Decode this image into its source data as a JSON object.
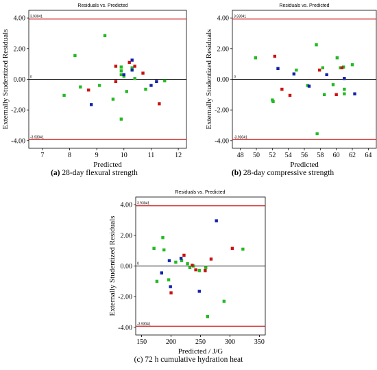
{
  "captions": [
    {
      "letter": "(a)",
      "text": " 28-day flexural strength"
    },
    {
      "letter": "(b)",
      "text": " 28-day compressive strength"
    },
    {
      "letter": "(c)",
      "text": " 72 h cumulative hydration heat"
    }
  ],
  "colors": {
    "green": "#22bb22",
    "red": "#cc1111",
    "blue": "#1122aa",
    "limit": "#cc2222",
    "zero": "#000000"
  },
  "chart_data": [
    {
      "type": "scatter",
      "title": "Residuals vs. Predicted",
      "xlabel": "Predicted",
      "ylabel": "Externally Studentized Residuals",
      "xlim": [
        6.5,
        12.3
      ],
      "ylim": [
        -4.5,
        4.5
      ],
      "xticks": [
        7,
        8,
        9,
        10,
        11,
        12
      ],
      "xtick_labels": [
        "7",
        "8",
        "9",
        "10",
        "11",
        "12"
      ],
      "yticks": [
        -4,
        -2,
        0,
        2,
        4
      ],
      "ytick_labels": [
        "-4.00",
        "-2.00",
        "0.00",
        "2.00",
        "4.00"
      ],
      "reference_lines": [
        {
          "y": 3.93041,
          "label": "3.93041",
          "color": "red"
        },
        {
          "y": 0,
          "label": "0",
          "color": "black"
        },
        {
          "y": -3.93041,
          "label": "-3.93041",
          "color": "red"
        }
      ],
      "series": [
        {
          "color": "green",
          "points": [
            [
              7.8,
              -1.05
            ],
            [
              8.2,
              1.55
            ],
            [
              8.4,
              -0.5
            ],
            [
              9.1,
              -0.4
            ],
            [
              9.3,
              2.85
            ],
            [
              9.6,
              -1.3
            ],
            [
              9.9,
              0.8
            ],
            [
              9.9,
              0.55
            ],
            [
              9.9,
              0.3
            ],
            [
              9.9,
              -2.6
            ],
            [
              10.0,
              0.2
            ],
            [
              10.1,
              -0.8
            ],
            [
              10.3,
              0.75
            ],
            [
              10.4,
              0.05
            ],
            [
              10.8,
              -0.65
            ],
            [
              11.5,
              -0.1
            ]
          ]
        },
        {
          "color": "red",
          "points": [
            [
              8.7,
              -0.7
            ],
            [
              9.7,
              0.85
            ],
            [
              9.7,
              -0.15
            ],
            [
              10.2,
              1.1
            ],
            [
              10.4,
              0.85
            ],
            [
              10.7,
              0.4
            ],
            [
              11.3,
              -1.6
            ]
          ]
        },
        {
          "color": "blue",
          "points": [
            [
              8.8,
              -1.65
            ],
            [
              10.0,
              0.3
            ],
            [
              10.3,
              1.25
            ],
            [
              10.3,
              0.6
            ],
            [
              11.0,
              -0.4
            ],
            [
              11.2,
              -0.15
            ]
          ]
        }
      ]
    },
    {
      "type": "scatter",
      "title": "Residuals vs. Predicted",
      "xlabel": "Predicted",
      "ylabel": "Externally Studentized Residuals",
      "xlim": [
        47,
        65
      ],
      "ylim": [
        -4.5,
        4.5
      ],
      "xticks": [
        48,
        50,
        52,
        54,
        56,
        58,
        60,
        62,
        64
      ],
      "xtick_labels": [
        "48",
        "50",
        "52",
        "54",
        "56",
        "58",
        "60",
        "62",
        "64"
      ],
      "yticks": [
        -4,
        -2,
        0,
        2,
        4
      ],
      "ytick_labels": [
        "-4.00",
        "-2.00",
        "0.00",
        "2.00",
        "4.00"
      ],
      "reference_lines": [
        {
          "y": 3.93041,
          "label": "3.93041",
          "color": "red"
        },
        {
          "y": 0,
          "label": "0",
          "color": "black"
        },
        {
          "y": -3.93041,
          "label": "-3.93041",
          "color": "red"
        }
      ],
      "series": [
        {
          "color": "green",
          "points": [
            [
              49.9,
              1.4
            ],
            [
              52.0,
              -1.35
            ],
            [
              52.1,
              -1.45
            ],
            [
              55.0,
              0.6
            ],
            [
              56.4,
              -0.4
            ],
            [
              57.5,
              2.25
            ],
            [
              57.6,
              -3.55
            ],
            [
              58.3,
              0.75
            ],
            [
              58.5,
              -1.0
            ],
            [
              59.6,
              -0.35
            ],
            [
              60.1,
              1.4
            ],
            [
              60.9,
              0.8
            ],
            [
              61.0,
              -0.65
            ],
            [
              61.0,
              -0.95
            ],
            [
              62.0,
              0.95
            ],
            [
              60.5,
              0.75
            ]
          ]
        },
        {
          "color": "red",
          "points": [
            [
              52.3,
              1.5
            ],
            [
              53.2,
              -0.65
            ],
            [
              54.2,
              -1.05
            ],
            [
              57.9,
              0.6
            ],
            [
              60.0,
              -1.0
            ],
            [
              60.7,
              0.75
            ],
            [
              61.0,
              0.05
            ]
          ]
        },
        {
          "color": "blue",
          "points": [
            [
              52.7,
              0.7
            ],
            [
              54.7,
              0.35
            ],
            [
              56.6,
              -0.45
            ],
            [
              58.8,
              0.3
            ],
            [
              61.0,
              0.05
            ],
            [
              62.3,
              -0.95
            ]
          ]
        }
      ]
    },
    {
      "type": "scatter",
      "title": "Residuals vs. Predicted",
      "xlabel": "Predicted / J/G",
      "ylabel": "Externally Studentized Residuals",
      "xlim": [
        140,
        360
      ],
      "ylim": [
        -4.5,
        4.5
      ],
      "xticks": [
        150,
        200,
        250,
        300,
        350
      ],
      "xtick_labels": [
        "150",
        "200",
        "250",
        "300",
        "350"
      ],
      "yticks": [
        -4,
        -2,
        0,
        2,
        4
      ],
      "ytick_labels": [
        "-4.00",
        "-2.00",
        "0.00",
        "2.00",
        "4.00"
      ],
      "reference_lines": [
        {
          "y": 3.93041,
          "label": "3.93041",
          "color": "red"
        },
        {
          "y": 0,
          "label": "0",
          "color": "black"
        },
        {
          "y": -3.93041,
          "label": "-3.93041",
          "color": "red"
        }
      ],
      "series": [
        {
          "color": "green",
          "points": [
            [
              171,
              1.15
            ],
            [
              176,
              -1.0
            ],
            [
              186,
              1.85
            ],
            [
              188,
              1.05
            ],
            [
              196,
              -0.9
            ],
            [
              208,
              0.25
            ],
            [
              218,
              0.35
            ],
            [
              228,
              0.15
            ],
            [
              232,
              -0.1
            ],
            [
              238,
              0.0
            ],
            [
              248,
              -0.3
            ],
            [
              259,
              -0.1
            ],
            [
              262,
              -3.3
            ],
            [
              290,
              -2.3
            ],
            [
              322,
              1.1
            ]
          ]
        },
        {
          "color": "red",
          "points": [
            [
              200,
              -1.75
            ],
            [
              222,
              0.7
            ],
            [
              236,
              0.05
            ],
            [
              242,
              -0.25
            ],
            [
              258,
              -0.3
            ],
            [
              268,
              0.45
            ],
            [
              304,
              1.15
            ]
          ]
        },
        {
          "color": "blue",
          "points": [
            [
              184,
              -0.45
            ],
            [
              197,
              0.35
            ],
            [
              199,
              -1.35
            ],
            [
              217,
              0.5
            ],
            [
              248,
              -1.65
            ],
            [
              277,
              2.95
            ]
          ]
        }
      ]
    }
  ]
}
